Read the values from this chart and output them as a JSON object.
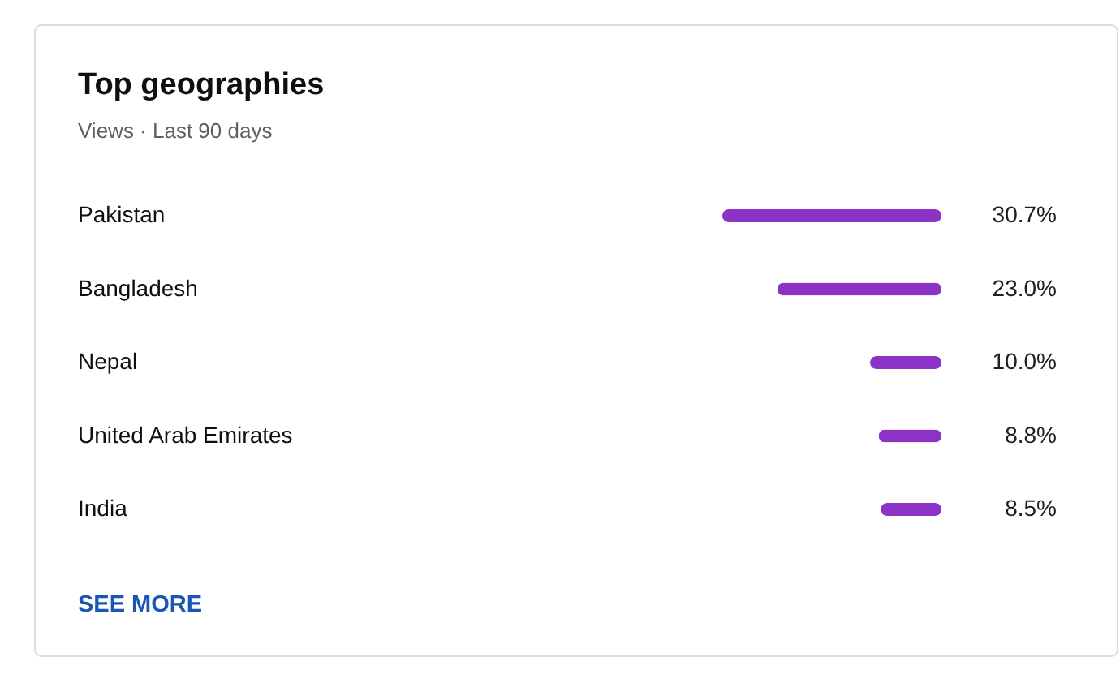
{
  "chart_data": {
    "type": "bar",
    "orientation": "horizontal",
    "title": "Top geographies",
    "subtitle": "Views · Last 90 days",
    "categories": [
      "Pakistan",
      "Bangladesh",
      "Nepal",
      "United Arab Emirates",
      "India"
    ],
    "values": [
      30.7,
      23.0,
      10.0,
      8.8,
      8.5
    ],
    "color": "#8c32c5",
    "value_labels": [
      "30.7%",
      "23.0%",
      "10.0%",
      "8.8%",
      "8.5%"
    ],
    "annotations": [
      "SEE MORE"
    ]
  }
}
